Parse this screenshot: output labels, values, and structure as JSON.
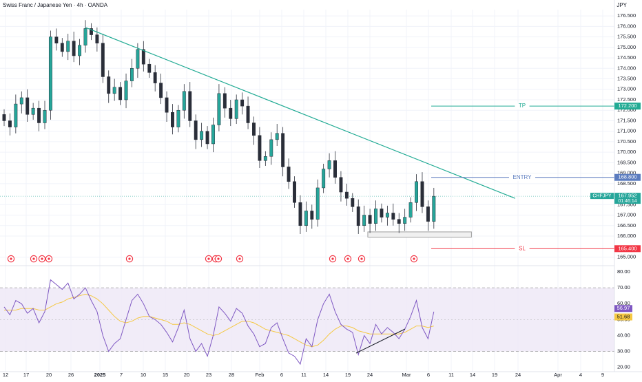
{
  "header": {
    "title": "Swiss Franc / Japanese Yen · 4h · OANDA",
    "currency": "JPY"
  },
  "colors": {
    "up": "#26a69a",
    "down": "#ef5350",
    "candle_body": "#2a2e39",
    "trendline": "#22ab94",
    "tp_line": "#22ab94",
    "entry_line": "#5b7cbf",
    "sl_line": "#f23645",
    "rsi_line": "#7e57c2",
    "rsi_ma": "#f5c842",
    "rsi_band": "#ede7f6",
    "grid": "#f0f3fa"
  },
  "icons": {
    "event_marker": "economic-event-icon"
  },
  "chart_data": [
    {
      "type": "candlestick",
      "series": [
        {
          "name": "CHFJPY",
          "close": [
            171.5,
            171.2,
            172.3,
            172.6,
            171.8,
            172.1,
            171.4,
            172.0,
            175.5,
            175.2,
            174.8,
            175.3,
            174.6,
            175.1,
            175.9,
            175.6,
            175.2,
            173.6,
            172.8,
            173.1,
            172.5,
            173.4,
            174.0,
            174.9,
            174.2,
            173.8,
            173.3,
            172.6,
            171.9,
            171.2,
            172.0,
            172.9,
            171.5,
            170.6,
            171.0,
            170.4,
            171.3,
            172.8,
            172.1,
            171.6,
            172.5,
            172.2,
            171.4,
            170.8,
            169.6,
            169.8,
            170.6,
            170.9,
            169.3,
            168.6,
            167.6,
            166.5,
            167.2,
            166.8,
            168.3,
            169.2,
            169.6,
            168.8,
            168.1,
            167.8,
            167.4,
            166.5,
            167.0,
            166.6,
            167.3,
            166.9,
            167.1,
            166.8,
            166.6,
            166.9,
            167.6,
            168.6,
            167.4,
            166.7,
            167.9
          ]
        }
      ],
      "x_tick_labels": [
        "12",
        "17",
        "20",
        "26",
        "2025",
        "7",
        "10",
        "15",
        "20",
        "23",
        "28",
        "Feb",
        "6",
        "11",
        "14",
        "19",
        "24",
        "Mar",
        "6",
        "11",
        "14",
        "19",
        "24",
        "Apr",
        "4",
        "9"
      ],
      "y_tick_labels": [
        "176.500",
        "176.000",
        "175.500",
        "175.000",
        "174.500",
        "174.000",
        "173.500",
        "173.000",
        "172.500",
        "172.000",
        "171.500",
        "171.000",
        "170.500",
        "170.000",
        "169.500",
        "169.000",
        "168.500",
        "167.500",
        "167.000",
        "166.500",
        "166.000",
        "165.000"
      ],
      "ylim": [
        164.72,
        176.8
      ],
      "price_label": {
        "symbol": "CHFJPY",
        "price": "167.952",
        "countdown": "01:46:14"
      },
      "levels": [
        {
          "label": "TP",
          "value": 172.2,
          "value_text": "172.200"
        },
        {
          "label": "ENTRY",
          "value": 168.8,
          "value_text": "168.800"
        },
        {
          "label": "SL",
          "value": 165.4,
          "value_text": "165.400"
        }
      ],
      "trendline": {
        "start": {
          "candle": 14,
          "price": 175.95
        },
        "end": {
          "candle": 88,
          "price": 167.8
        }
      },
      "support_zone": {
        "start_candle": 65,
        "end_candle": 80,
        "low": 165.95,
        "high": 166.2
      },
      "event_markers": 13
    },
    {
      "type": "line",
      "series": [
        {
          "name": "RSI",
          "values": [
            58,
            53,
            62,
            60,
            54,
            57,
            48,
            55,
            75,
            72,
            69,
            73,
            63,
            66,
            70,
            62,
            55,
            40,
            30,
            35,
            38,
            50,
            62,
            66,
            60,
            52,
            50,
            47,
            42,
            36,
            45,
            56,
            38,
            30,
            35,
            27,
            40,
            58,
            54,
            49,
            57,
            54,
            46,
            41,
            33,
            35,
            45,
            48,
            38,
            29,
            27,
            22,
            38,
            33,
            50,
            60,
            66,
            55,
            47,
            44,
            42,
            28,
            40,
            35,
            47,
            41,
            45,
            42,
            38,
            44,
            52,
            62,
            45,
            38,
            55
          ]
        },
        {
          "name": "RSI MA",
          "values": [
            56,
            56,
            56,
            57,
            57,
            57,
            56,
            56,
            58,
            60,
            61,
            63,
            64,
            65,
            66,
            65,
            63,
            60,
            56,
            52,
            49,
            48,
            49,
            51,
            52,
            52,
            51,
            50,
            49,
            47,
            47,
            48,
            47,
            45,
            43,
            41,
            40,
            41,
            43,
            45,
            47,
            49,
            49,
            48,
            46,
            44,
            43,
            42,
            41,
            40,
            38,
            36,
            34,
            33,
            34,
            37,
            41,
            44,
            46,
            46,
            45,
            43,
            42,
            41,
            41,
            41,
            41,
            41,
            41,
            42,
            44,
            46,
            46,
            45,
            46
          ]
        }
      ],
      "y_tick_labels": [
        "80.00",
        "70.00",
        "60.00",
        "50.00",
        "40.00",
        "30.00",
        "20.00"
      ],
      "ylim": [
        17.3,
        81.3
      ],
      "band": [
        30,
        70
      ],
      "midline": 50,
      "value_labels": {
        "rsi": "56.97",
        "ma": "51.68"
      }
    }
  ]
}
